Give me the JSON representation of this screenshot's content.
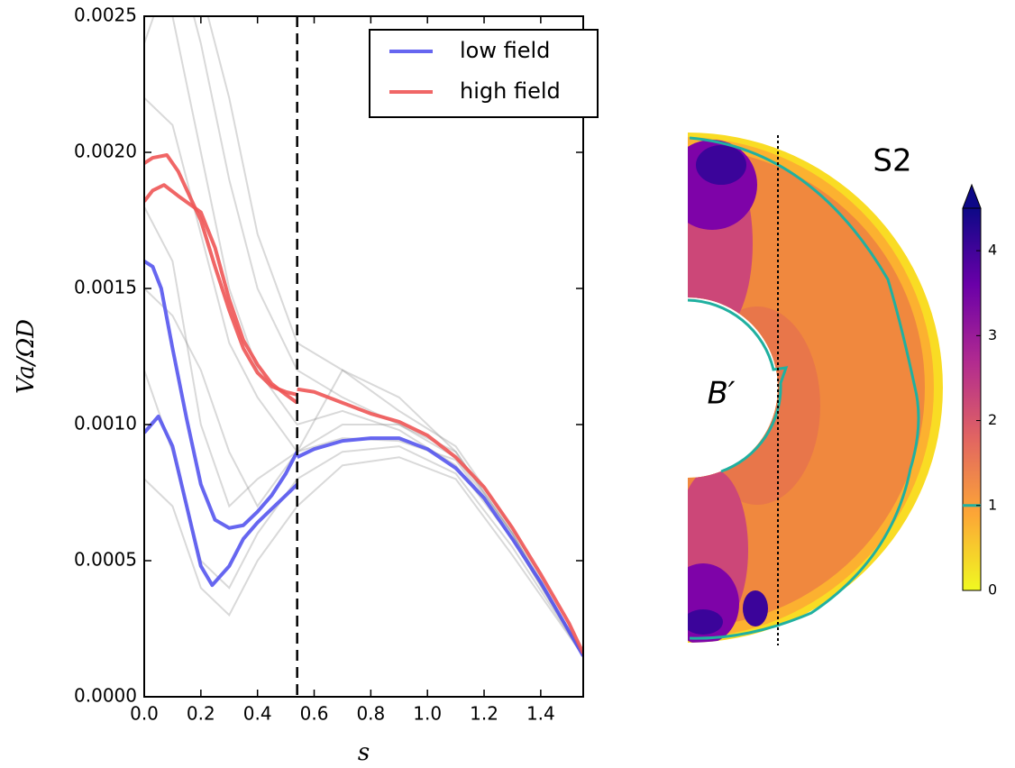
{
  "chart_data": [
    {
      "type": "line",
      "x_label": "s",
      "y_label": "Va/ΩD",
      "xlim": [
        0,
        1.55
      ],
      "ylim": [
        0,
        0.0025
      ],
      "xticks": [
        {
          "value": 0,
          "label": "0.0"
        },
        {
          "value": 0.2,
          "label": "0.2"
        },
        {
          "value": 0.4,
          "label": "0.4"
        },
        {
          "value": 0.6,
          "label": "0.6"
        },
        {
          "value": 0.8,
          "label": "0.8"
        },
        {
          "value": 1.0,
          "label": "1.0"
        },
        {
          "value": 1.2,
          "label": "1.2"
        },
        {
          "value": 1.4,
          "label": "1.4"
        }
      ],
      "yticks": [
        {
          "value": 0,
          "label": "0.0000"
        },
        {
          "value": 0.0005,
          "label": "0.0005"
        },
        {
          "value": 0.001,
          "label": "0.0010"
        },
        {
          "value": 0.0015,
          "label": "0.0015"
        },
        {
          "value": 0.002,
          "label": "0.0020"
        },
        {
          "value": 0.0025,
          "label": "0.0025"
        }
      ],
      "vline": 0.54,
      "legend": "upper right",
      "ensemble": {
        "color": "#808080",
        "x": [
          0,
          0.1,
          0.2,
          0.3,
          0.4,
          0.54,
          0.7,
          0.9,
          1.1,
          1.3,
          1.55
        ],
        "lines": [
          [
            0.003,
            0.0028,
            0.0024,
            0.0019,
            0.0015,
            0.0012,
            0.0011,
            0.001,
            0.0009,
            0.0006,
            0.00015
          ],
          [
            0.0022,
            0.0021,
            0.0017,
            0.0013,
            0.0011,
            0.0009,
            0.001,
            0.001,
            0.00088,
            0.0006,
            0.00015
          ],
          [
            0.0012,
            0.0009,
            0.0005,
            0.0004,
            0.0006,
            0.0008,
            0.0009,
            0.00092,
            0.00082,
            0.00055,
            0.00015
          ],
          [
            0.0028,
            0.0025,
            0.002,
            0.0015,
            0.0012,
            0.001,
            0.00105,
            0.00098,
            0.00085,
            0.00058,
            0.00015
          ],
          [
            0.0018,
            0.0016,
            0.001,
            0.0007,
            0.0008,
            0.0009,
            0.0012,
            0.0011,
            0.0009,
            0.0006,
            0.00015
          ],
          [
            0.0024,
            0.0027,
            0.0026,
            0.0022,
            0.0017,
            0.0013,
            0.0012,
            0.00105,
            0.00092,
            0.00062,
            0.00015
          ],
          [
            0.0008,
            0.0007,
            0.0004,
            0.0003,
            0.0005,
            0.0007,
            0.00085,
            0.00088,
            0.0008,
            0.00052,
            0.00015
          ],
          [
            0.0015,
            0.0014,
            0.0012,
            0.0009,
            0.0007,
            0.0009,
            0.00095,
            0.00094,
            0.00087,
            0.00058,
            0.00015
          ]
        ]
      },
      "series": [
        {
          "name": "low field",
          "color": "#5555ee",
          "lines": [
            {
              "x": [
                0,
                0.03,
                0.06,
                0.1,
                0.15,
                0.2,
                0.25,
                0.3,
                0.35,
                0.4,
                0.45,
                0.5,
                0.54
              ],
              "values": [
                0.0016,
                0.00158,
                0.0015,
                0.00128,
                0.00102,
                0.00078,
                0.00065,
                0.00062,
                0.00063,
                0.00068,
                0.00074,
                0.00082,
                0.0009
              ]
            },
            {
              "x": [
                0,
                0.05,
                0.1,
                0.15,
                0.2,
                0.24,
                0.3,
                0.35,
                0.4,
                0.45,
                0.5,
                0.54
              ],
              "values": [
                0.00097,
                0.00103,
                0.00092,
                0.0007,
                0.00048,
                0.00041,
                0.00048,
                0.00058,
                0.00064,
                0.00069,
                0.00074,
                0.00078
              ]
            },
            {
              "x": [
                0.54,
                0.6,
                0.7,
                0.8,
                0.9,
                1.0,
                1.1,
                1.2,
                1.3,
                1.4,
                1.5,
                1.55
              ],
              "values": [
                0.00088,
                0.00091,
                0.00094,
                0.00095,
                0.00095,
                0.00091,
                0.00084,
                0.00073,
                0.00058,
                0.00042,
                0.00024,
                0.00015
              ]
            }
          ]
        },
        {
          "name": "high field",
          "color": "#ee5555",
          "lines": [
            {
              "x": [
                0,
                0.03,
                0.08,
                0.12,
                0.2,
                0.25,
                0.3,
                0.35,
                0.4,
                0.45,
                0.5,
                0.54
              ],
              "values": [
                0.00196,
                0.00198,
                0.00199,
                0.00193,
                0.00175,
                0.00158,
                0.00142,
                0.00128,
                0.00119,
                0.00114,
                0.00112,
                0.00111
              ]
            },
            {
              "x": [
                0,
                0.03,
                0.07,
                0.12,
                0.2,
                0.25,
                0.3,
                0.35,
                0.4,
                0.45,
                0.5,
                0.54
              ],
              "values": [
                0.00182,
                0.00186,
                0.00188,
                0.00184,
                0.00178,
                0.00165,
                0.00146,
                0.00131,
                0.00122,
                0.00115,
                0.00111,
                0.00108
              ]
            },
            {
              "x": [
                0.54,
                0.6,
                0.7,
                0.8,
                0.9,
                1.0,
                1.1,
                1.2,
                1.3,
                1.4,
                1.5,
                1.55
              ],
              "values": [
                0.00113,
                0.00112,
                0.00108,
                0.00104,
                0.00101,
                0.00096,
                0.00088,
                0.00077,
                0.00062,
                0.00045,
                0.00027,
                0.00016
              ]
            }
          ]
        }
      ]
    },
    {
      "type": "contour",
      "label": "S2",
      "field_label": "B′",
      "clim": [
        0,
        4.5
      ],
      "cticks": [
        0,
        1,
        2,
        3,
        4
      ],
      "extend": "max",
      "contour_level": 1,
      "contour_color": "#20b0a0"
    }
  ]
}
